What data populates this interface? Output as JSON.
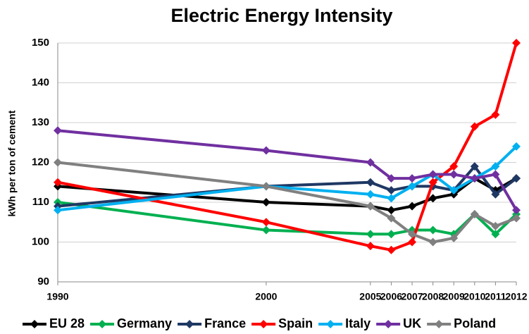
{
  "chart_data": {
    "type": "line",
    "title": "Electric Energy Intensity",
    "y_label": "kWh per ton of cement",
    "x": [
      1990,
      2000,
      2005,
      2006,
      2007,
      2008,
      2009,
      2010,
      2011,
      2012
    ],
    "xlim": [
      1990,
      2012
    ],
    "xticks": [
      1990,
      2000,
      2005,
      2006,
      2007,
      2008,
      2009,
      2010,
      2011,
      2012
    ],
    "ylim": [
      90,
      150
    ],
    "yticks": [
      90,
      100,
      110,
      120,
      130,
      140,
      150
    ],
    "grid": true,
    "legend": "bottom",
    "series": [
      {
        "name": "EU 28",
        "color": "#000000",
        "values": [
          114,
          110,
          109,
          108,
          109,
          111,
          112,
          116,
          113,
          116
        ]
      },
      {
        "name": "Germany",
        "color": "#00b050",
        "values": [
          110,
          103,
          102,
          102,
          103,
          103,
          102,
          107,
          102,
          107
        ]
      },
      {
        "name": "France",
        "color": "#1f3864",
        "values": [
          109,
          114,
          115,
          113,
          114,
          114,
          113,
          119,
          112,
          116
        ]
      },
      {
        "name": "Spain",
        "color": "#ff0000",
        "values": [
          115,
          105,
          99,
          98,
          100,
          115,
          119,
          129,
          132,
          150
        ]
      },
      {
        "name": "Italy",
        "color": "#00b0f0",
        "values": [
          108,
          114,
          112,
          111,
          114,
          117,
          113,
          116,
          119,
          124
        ]
      },
      {
        "name": "UK",
        "color": "#7030a0",
        "values": [
          128,
          123,
          120,
          116,
          116,
          117,
          117,
          116,
          117,
          108
        ]
      },
      {
        "name": "Poland",
        "color": "#808080",
        "values": [
          120,
          114,
          109,
          106,
          102,
          100,
          101,
          107,
          104,
          106
        ]
      }
    ]
  }
}
